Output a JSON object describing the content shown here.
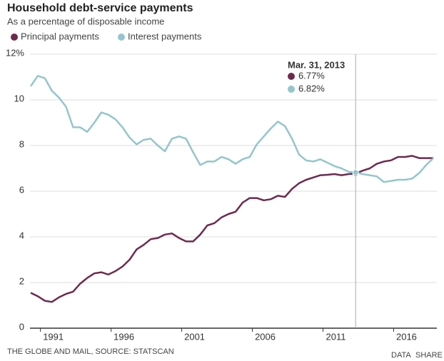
{
  "chart_data": {
    "type": "line",
    "title": "Household debt-service payments",
    "subtitle": "As a percentage of disposable income",
    "annotation": "Mar. 31, 2013",
    "source": "THE GLOBE AND MAIL, SOURCE: STATSCAN",
    "actions": [
      "DATA",
      "SHARE"
    ],
    "x": [
      1989.4,
      1989.9,
      1990.4,
      1990.9,
      1991.4,
      1991.9,
      1992.4,
      1992.9,
      1993.4,
      1993.9,
      1994.4,
      1994.9,
      1995.4,
      1995.9,
      1996.4,
      1996.9,
      1997.4,
      1997.9,
      1998.4,
      1998.9,
      1999.4,
      1999.9,
      2000.4,
      2000.9,
      2001.4,
      2001.9,
      2002.4,
      2002.9,
      2003.4,
      2003.9,
      2004.4,
      2004.9,
      2005.4,
      2005.9,
      2006.4,
      2006.9,
      2007.4,
      2007.9,
      2008.4,
      2008.9,
      2009.4,
      2009.9,
      2010.4,
      2010.9,
      2011.4,
      2011.9,
      2012.4,
      2012.9,
      2013.4,
      2013.9,
      2014.4,
      2014.9,
      2015.4,
      2015.9,
      2016.4,
      2016.9,
      2017.4,
      2017.9
    ],
    "series": [
      {
        "name": "Principal payments",
        "color": "#6e2a4e",
        "values": [
          1.55,
          1.4,
          1.2,
          1.15,
          1.35,
          1.5,
          1.6,
          1.95,
          2.2,
          2.4,
          2.45,
          2.35,
          2.5,
          2.7,
          3.0,
          3.45,
          3.65,
          3.9,
          3.95,
          4.1,
          4.15,
          3.95,
          3.8,
          3.8,
          4.1,
          4.5,
          4.6,
          4.85,
          5.0,
          5.1,
          5.5,
          5.7,
          5.7,
          5.6,
          5.65,
          5.8,
          5.75,
          6.1,
          6.35,
          6.5,
          6.6,
          6.7,
          6.72,
          6.75,
          6.7,
          6.75,
          6.77,
          6.9,
          7.0,
          7.2,
          7.3,
          7.35,
          7.5,
          7.5,
          7.55,
          7.45,
          7.45,
          7.45
        ],
        "value_labels": [
          null,
          null,
          null,
          null,
          null,
          null,
          null,
          null,
          null,
          null,
          null,
          null,
          null,
          null,
          null,
          null,
          null,
          null,
          null,
          null,
          null,
          null,
          null,
          null,
          null,
          null,
          null,
          null,
          null,
          null,
          null,
          null,
          null,
          null,
          null,
          null,
          null,
          null,
          null,
          null,
          null,
          null,
          null,
          null,
          null,
          null,
          "6.77%",
          null,
          null,
          null,
          null,
          null,
          null,
          null,
          null,
          null,
          null,
          null
        ]
      },
      {
        "name": "Interest payments",
        "color": "#93c6cc",
        "values": [
          10.6,
          11.05,
          10.95,
          10.4,
          10.1,
          9.7,
          8.8,
          8.8,
          8.6,
          9.0,
          9.45,
          9.35,
          9.15,
          8.8,
          8.35,
          8.05,
          8.25,
          8.3,
          8.0,
          7.75,
          8.3,
          8.4,
          8.3,
          7.7,
          7.15,
          7.3,
          7.3,
          7.5,
          7.4,
          7.2,
          7.4,
          7.5,
          8.05,
          8.4,
          8.75,
          9.05,
          8.85,
          8.3,
          7.6,
          7.35,
          7.3,
          7.4,
          7.25,
          7.1,
          7.0,
          6.85,
          6.82,
          6.75,
          6.7,
          6.65,
          6.4,
          6.45,
          6.5,
          6.5,
          6.55,
          6.8,
          7.15,
          7.45
        ],
        "value_labels": [
          null,
          null,
          null,
          null,
          null,
          null,
          null,
          null,
          null,
          null,
          null,
          null,
          null,
          null,
          null,
          null,
          null,
          null,
          null,
          null,
          null,
          null,
          null,
          null,
          null,
          null,
          null,
          null,
          null,
          null,
          null,
          null,
          null,
          null,
          null,
          null,
          null,
          null,
          null,
          null,
          null,
          null,
          null,
          null,
          null,
          null,
          "6.82%",
          null,
          null,
          null,
          null,
          null,
          null,
          null,
          null,
          null,
          null,
          null
        ]
      }
    ],
    "xlim": [
      1989.35,
      2018.15
    ],
    "xticks": [
      1991,
      1996,
      2001,
      2006,
      2011,
      2016
    ],
    "ylim": [
      0,
      12
    ],
    "yticks": [
      0,
      2,
      4,
      6,
      8,
      10,
      {
        "value": 12,
        "label": "12%"
      }
    ],
    "grid": true
  }
}
